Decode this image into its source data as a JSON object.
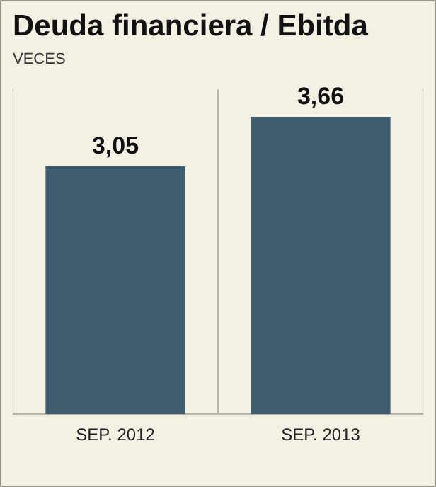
{
  "chart_data": {
    "type": "bar",
    "title": "Deuda financiera / Ebitda",
    "subtitle": "VECES",
    "categories": [
      "SEP. 2012",
      "SEP. 2013"
    ],
    "values": [
      3.05,
      3.66
    ],
    "value_labels": [
      "3,05",
      "3,66"
    ],
    "color": "#3e5c6e",
    "grid": "x",
    "legend": false
  }
}
